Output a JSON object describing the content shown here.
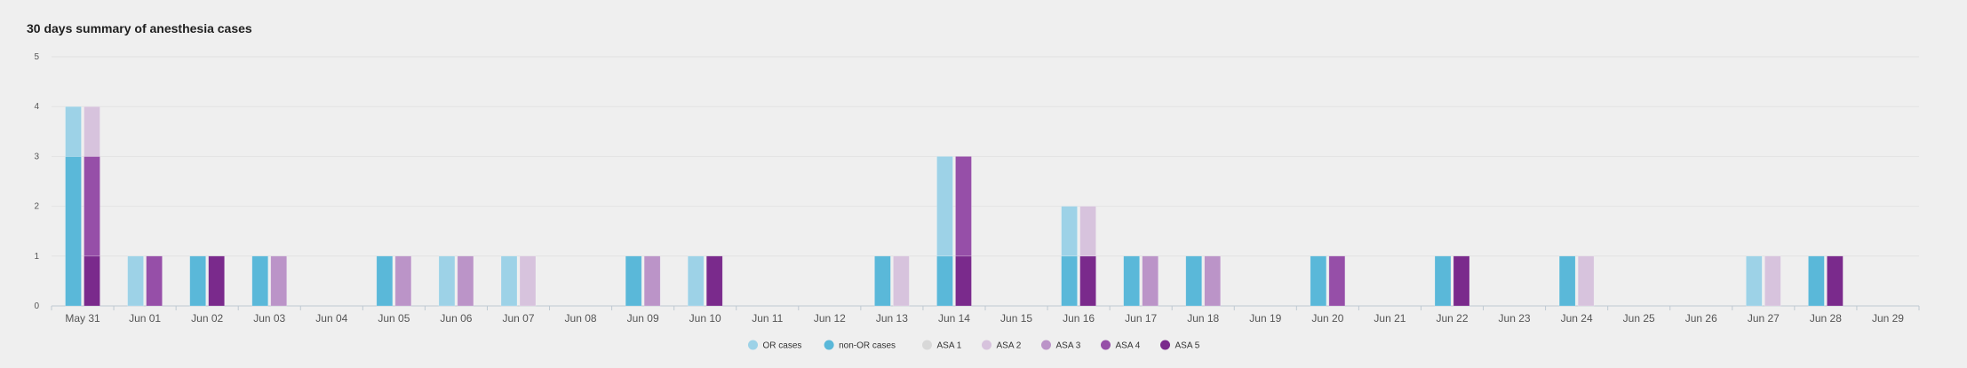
{
  "chart_data": {
    "type": "bar",
    "title": "30 days summary of anesthesia cases",
    "xlabel": "",
    "ylabel": "",
    "ylim": [
      0,
      5
    ],
    "yticks": [
      0,
      1,
      2,
      3,
      4,
      5
    ],
    "grid": true,
    "legend_position": "bottom-center",
    "categories": [
      "May 31",
      "Jun 01",
      "Jun 02",
      "Jun 03",
      "Jun 04",
      "Jun 05",
      "Jun 06",
      "Jun 07",
      "Jun 08",
      "Jun 09",
      "Jun 10",
      "Jun 11",
      "Jun 12",
      "Jun 13",
      "Jun 14",
      "Jun 15",
      "Jun 16",
      "Jun 17",
      "Jun 18",
      "Jun 19",
      "Jun 20",
      "Jun 21",
      "Jun 22",
      "Jun 23",
      "Jun 24",
      "Jun 25",
      "Jun 26",
      "Jun 27",
      "Jun 28",
      "Jun 29"
    ],
    "stacks": [
      {
        "series": [
          {
            "name": "non-OR cases",
            "color": "#5ab8d9",
            "values": [
              3,
              0,
              1,
              1,
              0,
              1,
              0,
              0,
              0,
              1,
              0,
              0,
              0,
              1,
              1,
              0,
              1,
              1,
              1,
              0,
              1,
              0,
              1,
              0,
              1,
              0,
              0,
              0,
              1,
              0
            ]
          },
          {
            "name": "OR cases",
            "color": "#9dd2e7",
            "values": [
              1,
              1,
              0,
              0,
              0,
              0,
              1,
              1,
              0,
              0,
              1,
              0,
              0,
              0,
              2,
              0,
              1,
              0,
              0,
              0,
              0,
              0,
              0,
              0,
              0,
              0,
              0,
              1,
              0,
              0
            ]
          }
        ]
      },
      {
        "series": [
          {
            "name": "ASA 5",
            "color": "#7a2a8c",
            "values": [
              1,
              0,
              1,
              0,
              0,
              0,
              0,
              0,
              0,
              0,
              1,
              0,
              0,
              0,
              1,
              0,
              1,
              0,
              0,
              0,
              0,
              0,
              1,
              0,
              0,
              0,
              0,
              0,
              1,
              0
            ]
          },
          {
            "name": "ASA 4",
            "color": "#964fa8",
            "values": [
              2,
              1,
              0,
              0,
              0,
              0,
              0,
              0,
              0,
              0,
              0,
              0,
              0,
              0,
              2,
              0,
              0,
              0,
              0,
              0,
              1,
              0,
              0,
              0,
              0,
              0,
              0,
              0,
              0,
              0
            ]
          },
          {
            "name": "ASA 3",
            "color": "#bb94c8",
            "values": [
              0,
              0,
              0,
              1,
              0,
              1,
              1,
              0,
              0,
              1,
              0,
              0,
              0,
              0,
              0,
              0,
              0,
              1,
              1,
              0,
              0,
              0,
              0,
              0,
              0,
              0,
              0,
              0,
              0,
              0
            ]
          },
          {
            "name": "ASA 2",
            "color": "#d7c3dd",
            "values": [
              1,
              0,
              0,
              0,
              0,
              0,
              0,
              1,
              0,
              0,
              0,
              0,
              0,
              1,
              0,
              0,
              1,
              0,
              0,
              0,
              0,
              0,
              0,
              0,
              1,
              0,
              0,
              1,
              0,
              0
            ]
          },
          {
            "name": "ASA 1",
            "color": "#d8d8d8",
            "values": [
              0,
              0,
              0,
              0,
              0,
              0,
              0,
              0,
              0,
              0,
              0,
              0,
              0,
              0,
              0,
              0,
              0,
              0,
              0,
              0,
              0,
              0,
              0,
              0,
              0,
              0,
              0,
              0,
              0,
              0
            ]
          }
        ]
      }
    ],
    "legend": [
      {
        "name": "OR cases",
        "color": "#9dd2e7"
      },
      {
        "name": "non-OR cases",
        "color": "#5ab8d9"
      },
      {
        "name": "ASA 1",
        "color": "#d8d8d8"
      },
      {
        "name": "ASA 2",
        "color": "#d7c3dd"
      },
      {
        "name": "ASA 3",
        "color": "#bb94c8"
      },
      {
        "name": "ASA 4",
        "color": "#964fa8"
      },
      {
        "name": "ASA 5",
        "color": "#7a2a8c"
      }
    ]
  }
}
